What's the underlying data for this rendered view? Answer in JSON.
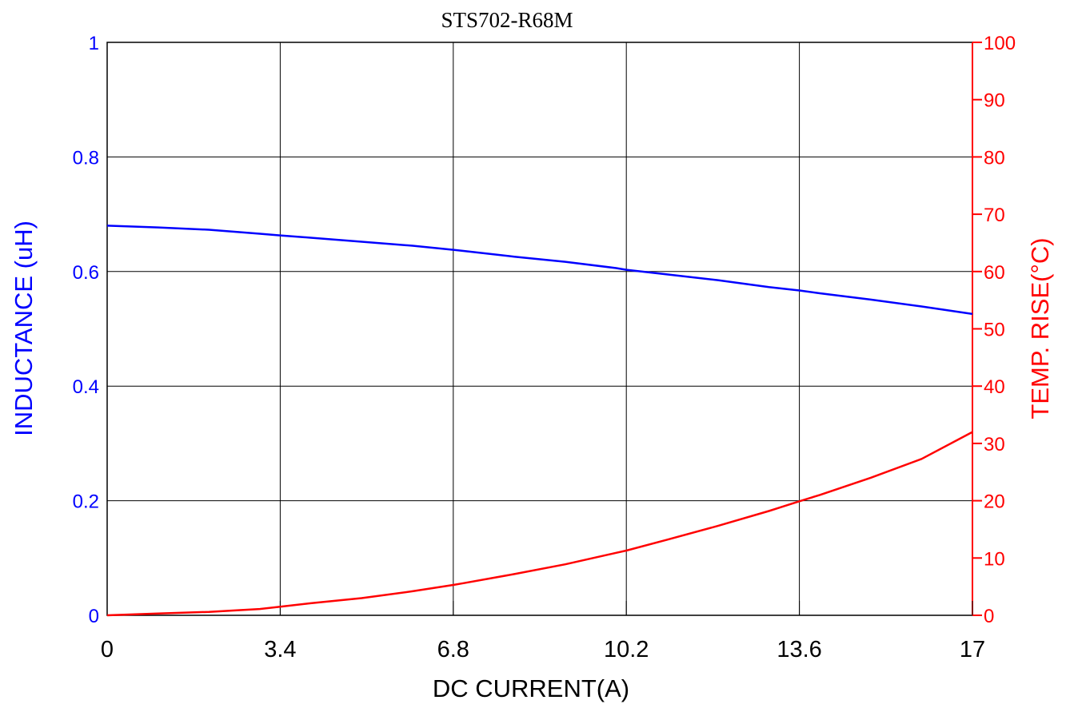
{
  "chart_data": {
    "type": "line",
    "title": "STS702-R68M",
    "xlabel": "DC CURRENT(A)",
    "ylabel_left": "INDUCTANCE (uH)",
    "ylabel_right": "TEMP. RISE(°C)",
    "xlim": [
      0,
      17
    ],
    "ylim_left": [
      0,
      1
    ],
    "ylim_right": [
      0,
      100
    ],
    "x_ticks": [
      "0",
      "3.4",
      "6.8",
      "10.2",
      "13.6",
      "17"
    ],
    "y_left_ticks": [
      "0",
      "0.2",
      "0.4",
      "0.6",
      "0.8",
      "1"
    ],
    "y_right_ticks": [
      "0",
      "10",
      "20",
      "30",
      "40",
      "50",
      "60",
      "70",
      "80",
      "90",
      "100"
    ],
    "grid": true,
    "colors": {
      "inductance": "#0000ff",
      "temp": "#ff0000",
      "grid": "#000000"
    },
    "series": [
      {
        "axis": "left",
        "x": [
          0,
          1,
          2,
          3,
          3.4,
          4,
          5,
          6,
          6.8,
          7,
          8,
          9,
          10,
          10.2,
          11,
          12,
          13,
          13.6,
          14,
          15,
          16,
          17
        ],
        "values": [
          0.68,
          0.677,
          0.673,
          0.666,
          0.663,
          0.659,
          0.652,
          0.645,
          0.638,
          0.636,
          0.626,
          0.617,
          0.606,
          0.603,
          0.595,
          0.585,
          0.573,
          0.567,
          0.562,
          0.551,
          0.539,
          0.526
        ]
      },
      {
        "axis": "right",
        "x": [
          0,
          1,
          2,
          3,
          3.4,
          4,
          5,
          6,
          6.8,
          7,
          8,
          9,
          10,
          10.2,
          11,
          12,
          13,
          13.6,
          14,
          15,
          16,
          17
        ],
        "values": [
          0,
          0.3,
          0.6,
          1.1,
          1.5,
          2.1,
          3.0,
          4.2,
          5.3,
          5.6,
          7.2,
          8.9,
          10.9,
          11.3,
          13.2,
          15.6,
          18.2,
          19.9,
          21.0,
          24.0,
          27.3,
          32.0
        ]
      }
    ]
  }
}
